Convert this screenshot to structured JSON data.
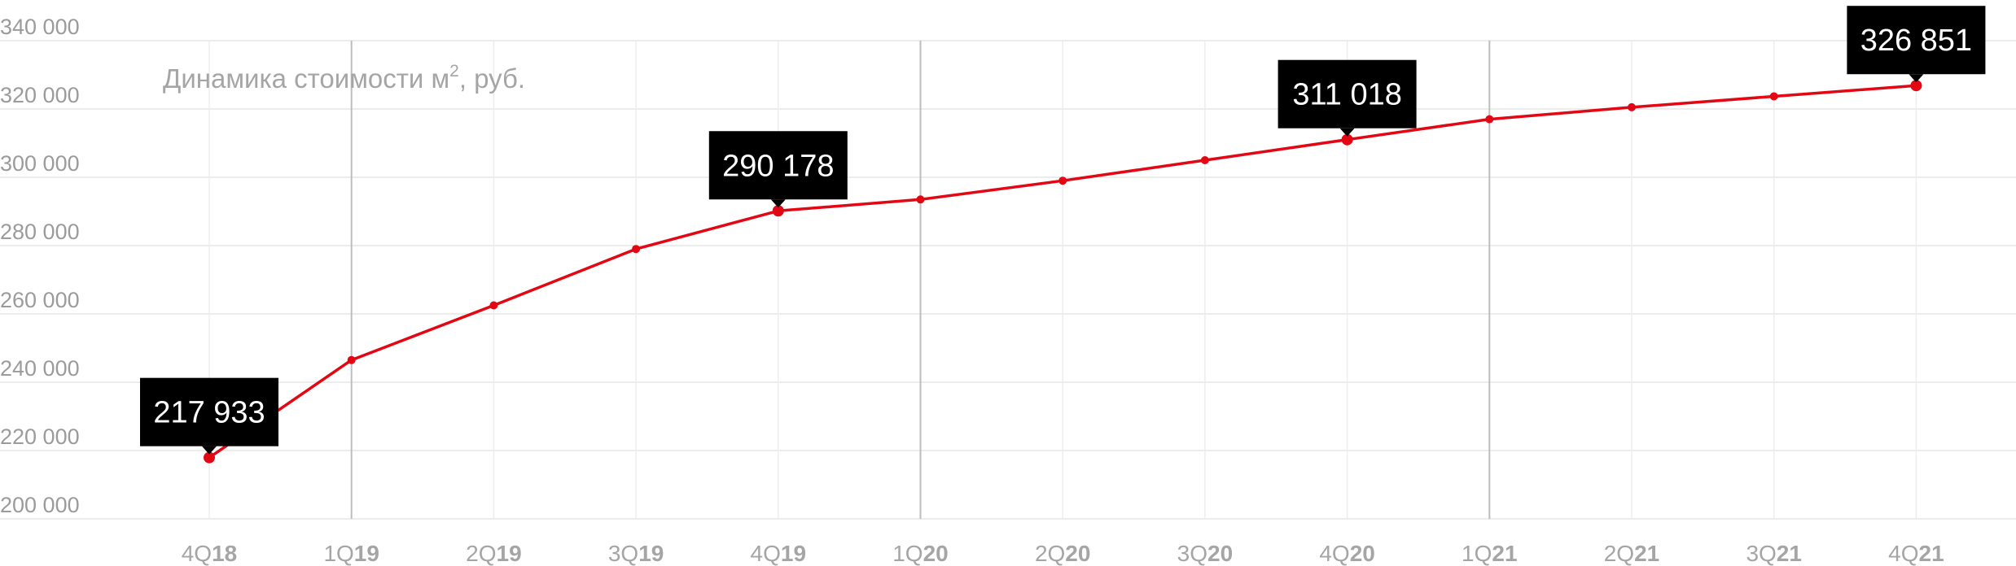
{
  "chart_data": {
    "type": "line",
    "title": "Динамика стоимости м",
    "title_sup": "2",
    "title_suffix": ", руб.",
    "categories": [
      {
        "q": "4Q",
        "y": "18"
      },
      {
        "q": "1Q",
        "y": "19"
      },
      {
        "q": "2Q",
        "y": "19"
      },
      {
        "q": "3Q",
        "y": "19"
      },
      {
        "q": "4Q",
        "y": "19"
      },
      {
        "q": "1Q",
        "y": "20"
      },
      {
        "q": "2Q",
        "y": "20"
      },
      {
        "q": "3Q",
        "y": "20"
      },
      {
        "q": "4Q",
        "y": "20"
      },
      {
        "q": "1Q",
        "y": "21"
      },
      {
        "q": "2Q",
        "y": "21"
      },
      {
        "q": "3Q",
        "y": "21"
      },
      {
        "q": "4Q",
        "y": "21"
      }
    ],
    "values": [
      217933,
      246500,
      262500,
      279000,
      290178,
      293500,
      299000,
      305000,
      311018,
      317000,
      320500,
      323700,
      326851
    ],
    "callouts": [
      {
        "index": 0,
        "label": "217 933"
      },
      {
        "index": 4,
        "label": "290 178"
      },
      {
        "index": 8,
        "label": "311 018"
      },
      {
        "index": 12,
        "label": "326 851"
      }
    ],
    "yticks": [
      {
        "value": 200000,
        "label": "200 000"
      },
      {
        "value": 220000,
        "label": "220 000"
      },
      {
        "value": 240000,
        "label": "240 000"
      },
      {
        "value": 260000,
        "label": "260 000"
      },
      {
        "value": 280000,
        "label": "280 000"
      },
      {
        "value": 300000,
        "label": "300 000"
      },
      {
        "value": 320000,
        "label": "320 000"
      },
      {
        "value": 340000,
        "label": "340 000"
      }
    ],
    "ylim": [
      200000,
      340000
    ],
    "grid": true,
    "line_color": "#e30613",
    "callout_color": "#000000"
  }
}
